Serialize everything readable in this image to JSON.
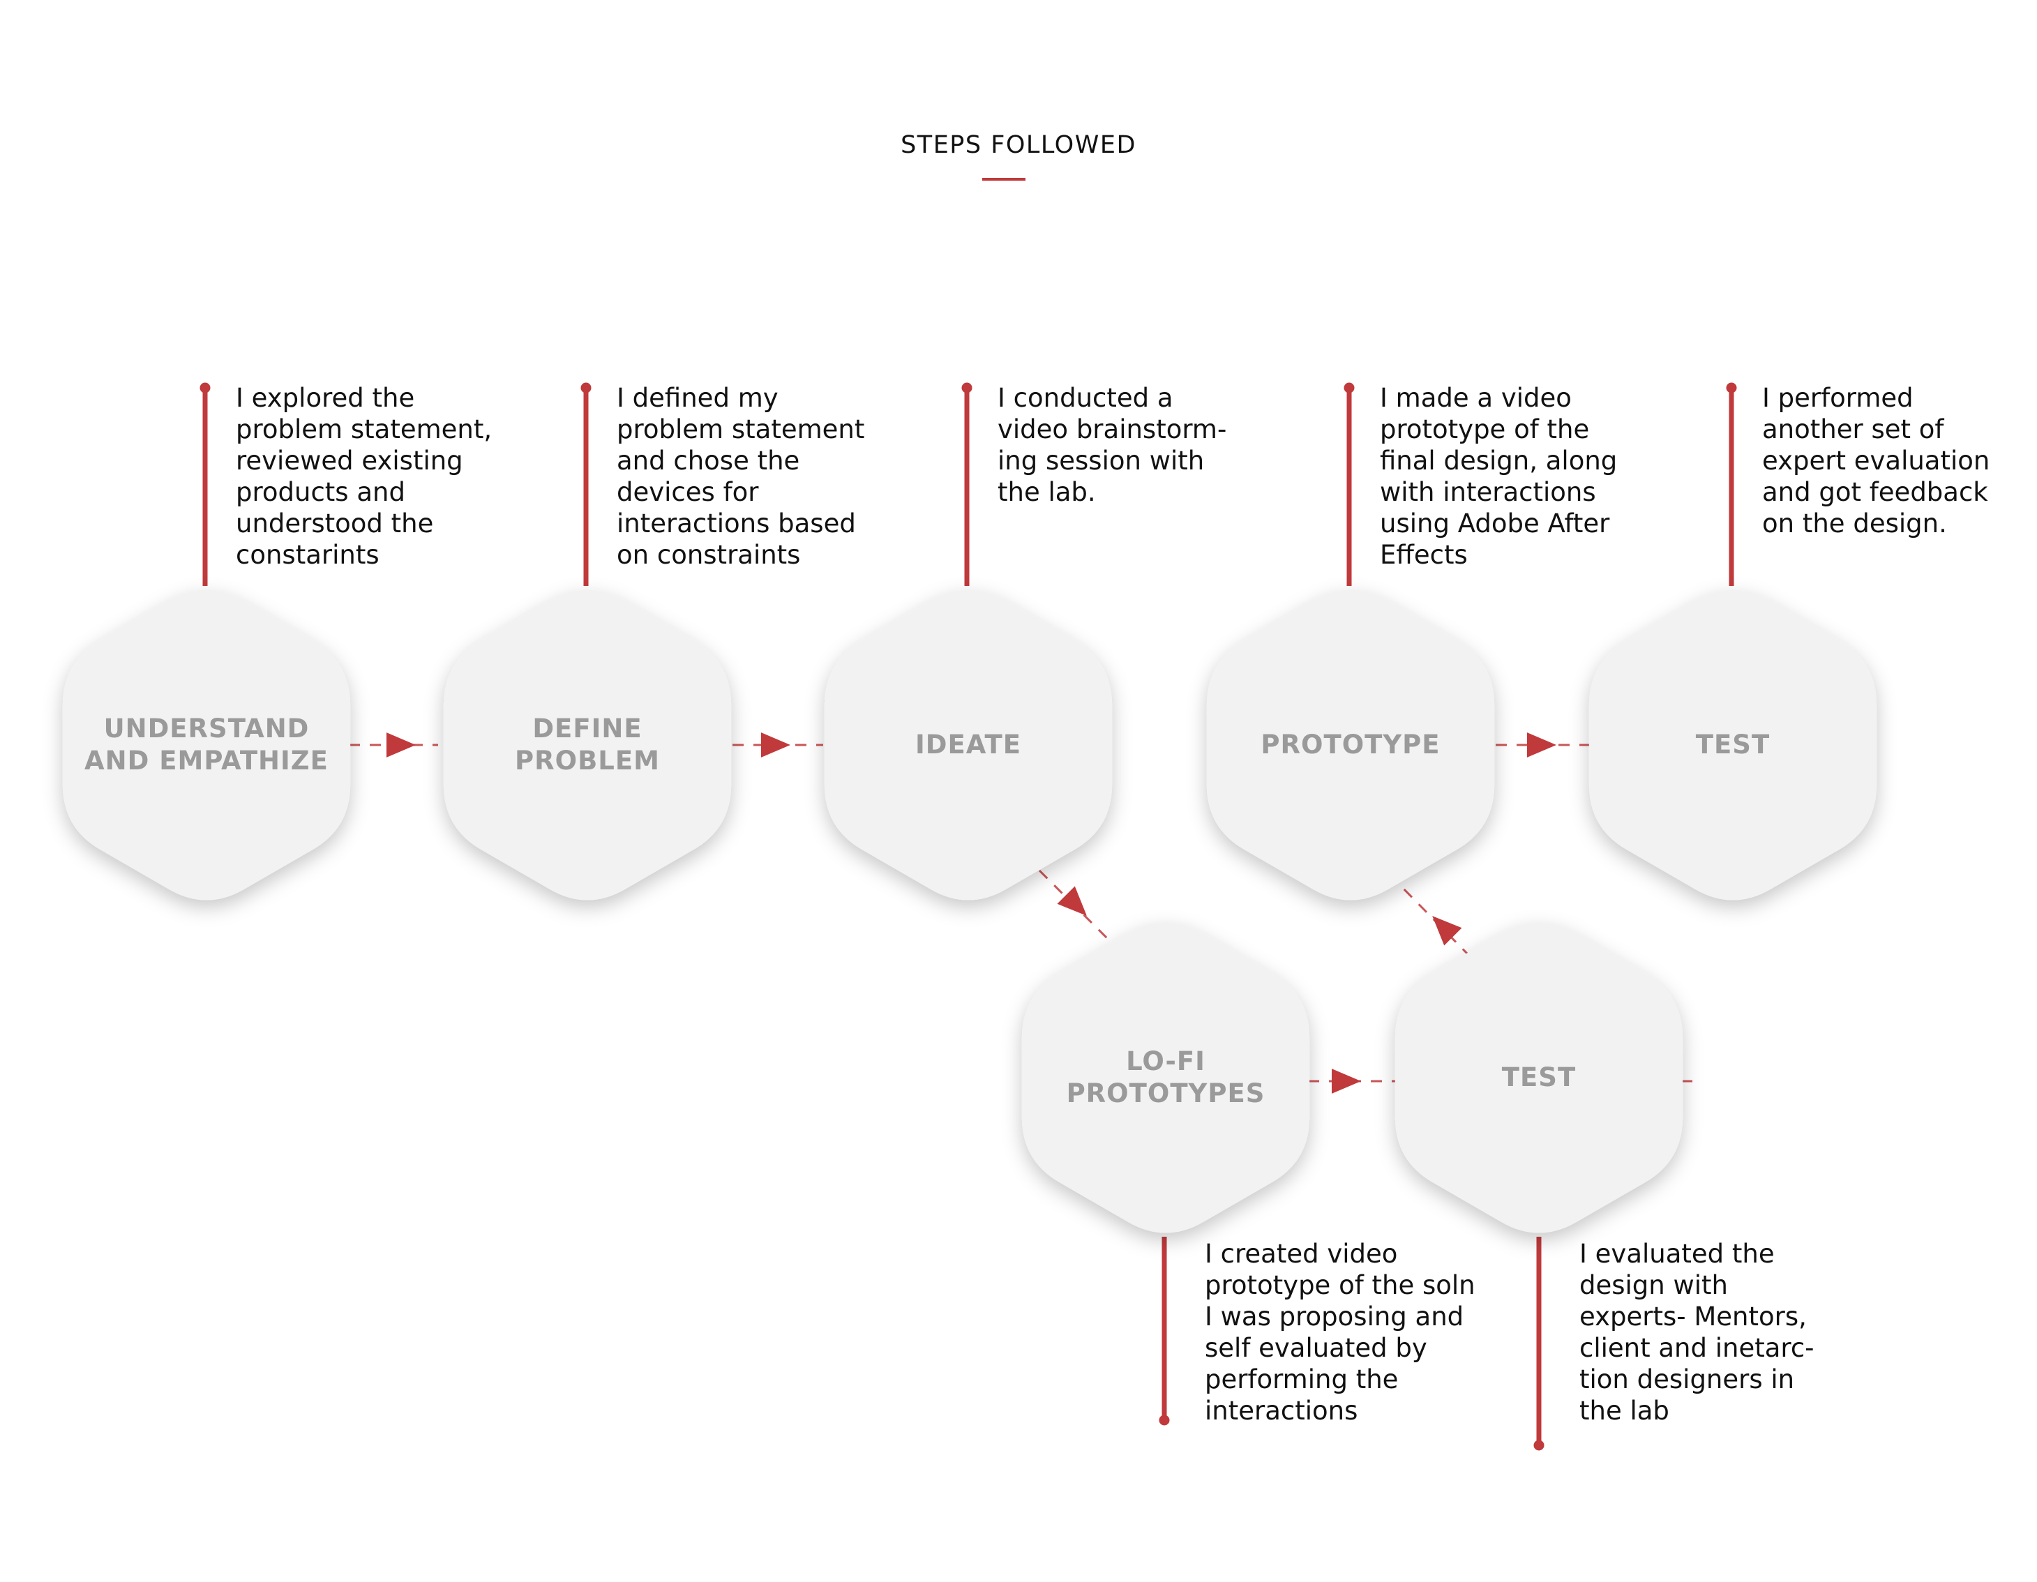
{
  "heading": "STEPS FOLLOWED",
  "colors": {
    "accent": "#c0393b",
    "hexagon_fill": "#f2f2f2",
    "label_text": "#9a9a9a"
  },
  "steps": [
    {
      "id": "understand",
      "label": "UNDERSTAND\nAND EMPATHIZE",
      "description": "I explored the\nproblem statement,\nreviewed existing\nproducts and\nunderstood the\nconstarints"
    },
    {
      "id": "define",
      "label": "DEFINE\nPROBLEM",
      "description": "I defined my\nproblem statement\nand chose the\ndevices for\ninteractions based\non constraints"
    },
    {
      "id": "ideate",
      "label": "IDEATE",
      "description": "I conducted a\nvideo brainstorm-\ning session with\nthe lab."
    },
    {
      "id": "prototype",
      "label": "PROTOTYPE",
      "description": "I made a video\nprototype of the\nfinal design, along\nwith interactions\nusing Adobe After\nEffects"
    },
    {
      "id": "test-final",
      "label": "TEST",
      "description": "I performed\nanother set of\nexpert evaluation\nand got feedback\non the design."
    },
    {
      "id": "lofi",
      "label": "LO-FI\nPROTOTYPES",
      "description": "I created video\nprototype of the soln\nI was proposing and\nself evaluated by\nperforming the\ninteractions"
    },
    {
      "id": "test-expert",
      "label": "TEST",
      "description": "I evaluated the\ndesign with\nexperts- Mentors,\nclient and inetarc-\ntion designers in\nthe lab"
    }
  ]
}
